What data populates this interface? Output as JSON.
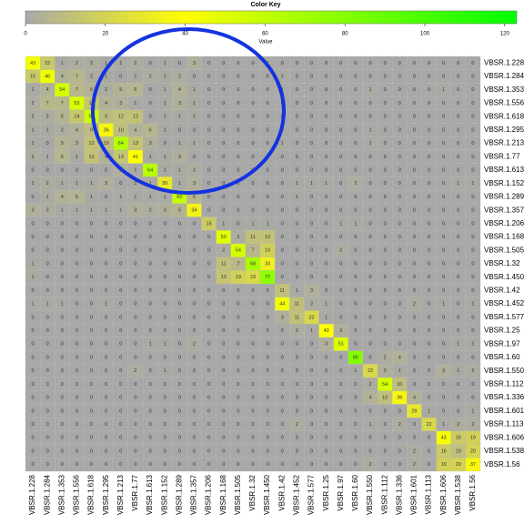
{
  "chart_data": {
    "type": "heatmap",
    "title": "Color Key",
    "zlabel": "Value",
    "labels": [
      "VBSR.1.228",
      "VBSR.1.284",
      "VBSR.1.353",
      "VBSR.1.556",
      "VBSR.1.618",
      "VBSR.1.295",
      "VBSR.1.213",
      "VBSR.1.77",
      "VBSR.1.613",
      "VBSR.1.152",
      "VBSR.1.289",
      "VBSR.1.357",
      "VBSR.1.206",
      "VBSR.1.168",
      "VBSR.1.505",
      "VBSR.1.32",
      "VBSR.1.450",
      "VBSR.1.42",
      "VBSR.1.452",
      "VBSR.1.577",
      "VBSR.1.25",
      "VBSR.1.97",
      "VBSR.1.60",
      "VBSR.1.550",
      "VBSR.1.112",
      "VBSR.1.336",
      "VBSR.1.601",
      "VBSR.1.113",
      "VBSR.1.606",
      "VBSR.1.538",
      "VBSR.1.56"
    ],
    "values": [
      [
        43,
        15,
        1,
        2,
        2,
        1,
        1,
        2,
        0,
        1,
        0,
        3,
        0,
        0,
        0,
        0,
        1,
        0,
        0,
        0,
        0,
        0,
        0,
        0,
        0,
        0,
        0,
        0,
        0,
        0,
        0
      ],
      [
        15,
        46,
        4,
        7,
        2,
        1,
        0,
        1,
        2,
        1,
        2,
        0,
        0,
        0,
        0,
        0,
        0,
        1,
        0,
        0,
        0,
        0,
        0,
        0,
        0,
        0,
        0,
        0,
        0,
        0,
        0
      ],
      [
        1,
        4,
        54,
        7,
        5,
        2,
        5,
        6,
        0,
        1,
        4,
        1,
        0,
        0,
        0,
        0,
        0,
        1,
        0,
        0,
        0,
        0,
        0,
        1,
        0,
        0,
        0,
        0,
        1,
        0,
        0
      ],
      [
        2,
        7,
        7,
        53,
        14,
        4,
        3,
        1,
        0,
        1,
        3,
        1,
        0,
        0,
        0,
        0,
        0,
        0,
        0,
        0,
        0,
        0,
        0,
        0,
        0,
        0,
        0,
        0,
        0,
        0,
        0
      ],
      [
        2,
        2,
        5,
        14,
        56,
        9,
        12,
        12,
        0,
        1,
        1,
        1,
        0,
        0,
        0,
        0,
        0,
        0,
        0,
        0,
        0,
        0,
        0,
        0,
        0,
        0,
        0,
        0,
        0,
        0,
        0
      ],
      [
        1,
        1,
        2,
        4,
        9,
        36,
        10,
        4,
        6,
        1,
        0,
        0,
        0,
        0,
        0,
        0,
        0,
        0,
        0,
        0,
        0,
        0,
        0,
        1,
        0,
        0,
        0,
        0,
        0,
        0,
        0
      ],
      [
        1,
        0,
        5,
        3,
        12,
        10,
        64,
        13,
        3,
        0,
        1,
        1,
        0,
        0,
        0,
        0,
        0,
        1,
        0,
        0,
        0,
        0,
        0,
        1,
        0,
        0,
        0,
        0,
        0,
        0,
        0
      ],
      [
        2,
        1,
        6,
        1,
        12,
        4,
        13,
        41,
        1,
        1,
        3,
        0,
        0,
        0,
        0,
        0,
        0,
        0,
        0,
        0,
        0,
        0,
        0,
        0,
        0,
        0,
        0,
        0,
        0,
        0,
        0
      ],
      [
        0,
        0,
        0,
        0,
        0,
        0,
        3,
        1,
        64,
        1,
        1,
        2,
        0,
        0,
        0,
        0,
        0,
        0,
        0,
        0,
        0,
        0,
        0,
        0,
        0,
        0,
        0,
        0,
        0,
        0,
        0
      ],
      [
        1,
        2,
        1,
        1,
        1,
        3,
        0,
        1,
        1,
        30,
        1,
        3,
        0,
        0,
        0,
        0,
        0,
        0,
        1,
        1,
        1,
        0,
        2,
        0,
        0,
        0,
        0,
        0,
        0,
        1,
        1
      ],
      [
        0,
        1,
        4,
        5,
        1,
        0,
        1,
        1,
        1,
        1,
        60,
        6,
        0,
        0,
        0,
        0,
        0,
        0,
        1,
        0,
        0,
        0,
        0,
        0,
        0,
        0,
        0,
        0,
        0,
        0,
        0
      ],
      [
        3,
        2,
        1,
        1,
        1,
        1,
        1,
        3,
        2,
        3,
        5,
        34,
        0,
        0,
        0,
        0,
        0,
        0,
        0,
        0,
        0,
        0,
        0,
        0,
        0,
        0,
        0,
        0,
        0,
        0,
        0
      ],
      [
        0,
        0,
        0,
        0,
        0,
        0,
        0,
        0,
        0,
        0,
        0,
        0,
        16,
        1,
        0,
        1,
        1,
        0,
        0,
        0,
        0,
        1,
        1,
        0,
        0,
        0,
        0,
        0,
        0,
        0,
        0
      ],
      [
        0,
        0,
        0,
        0,
        0,
        0,
        0,
        0,
        0,
        0,
        0,
        0,
        0,
        50,
        2,
        11,
        12,
        0,
        0,
        0,
        0,
        0,
        0,
        0,
        0,
        0,
        0,
        0,
        0,
        0,
        0
      ],
      [
        0,
        0,
        0,
        0,
        0,
        0,
        0,
        0,
        0,
        0,
        0,
        0,
        0,
        2,
        54,
        7,
        19,
        0,
        0,
        0,
        0,
        2,
        0,
        0,
        0,
        0,
        0,
        0,
        0,
        0,
        0
      ],
      [
        1,
        0,
        0,
        0,
        0,
        0,
        0,
        0,
        0,
        0,
        0,
        0,
        0,
        11,
        7,
        68,
        33,
        0,
        0,
        0,
        0,
        0,
        0,
        0,
        0,
        0,
        0,
        0,
        0,
        0,
        0
      ],
      [
        1,
        0,
        0,
        0,
        0,
        0,
        0,
        0,
        0,
        0,
        0,
        0,
        0,
        13,
        19,
        23,
        77,
        0,
        0,
        0,
        0,
        0,
        0,
        0,
        0,
        0,
        0,
        0,
        0,
        0,
        0
      ],
      [
        0,
        0,
        0,
        0,
        0,
        0,
        0,
        0,
        0,
        0,
        0,
        0,
        0,
        0,
        0,
        0,
        0,
        11,
        1,
        3,
        0,
        0,
        0,
        0,
        0,
        0,
        0,
        0,
        0,
        0,
        0
      ],
      [
        1,
        1,
        1,
        0,
        0,
        1,
        0,
        0,
        0,
        0,
        0,
        0,
        0,
        0,
        0,
        0,
        0,
        44,
        11,
        2,
        1,
        0,
        0,
        0,
        0,
        0,
        2,
        0,
        1,
        0,
        1
      ],
      [
        0,
        0,
        0,
        0,
        0,
        0,
        0,
        0,
        0,
        0,
        0,
        0,
        0,
        0,
        0,
        0,
        0,
        3,
        11,
        22,
        1,
        0,
        0,
        0,
        0,
        0,
        0,
        0,
        0,
        0,
        0
      ],
      [
        0,
        0,
        0,
        0,
        0,
        0,
        0,
        0,
        0,
        0,
        0,
        0,
        0,
        0,
        0,
        0,
        0,
        0,
        2,
        1,
        40,
        3,
        0,
        0,
        0,
        0,
        0,
        0,
        0,
        0,
        0
      ],
      [
        0,
        0,
        0,
        0,
        0,
        0,
        0,
        0,
        1,
        1,
        0,
        2,
        0,
        0,
        0,
        0,
        0,
        0,
        0,
        0,
        3,
        51,
        0,
        0,
        0,
        0,
        0,
        0,
        0,
        1,
        1
      ],
      [
        0,
        0,
        0,
        0,
        0,
        0,
        0,
        0,
        0,
        0,
        0,
        0,
        0,
        0,
        0,
        0,
        0,
        0,
        0,
        0,
        0,
        0,
        80,
        0,
        2,
        4,
        0,
        0,
        0,
        0,
        0
      ],
      [
        0,
        0,
        0,
        0,
        0,
        0,
        0,
        2,
        0,
        1,
        0,
        0,
        0,
        0,
        0,
        0,
        0,
        0,
        0,
        0,
        0,
        0,
        1,
        22,
        3,
        1,
        0,
        0,
        3,
        1,
        2
      ],
      [
        0,
        0,
        0,
        0,
        0,
        0,
        0,
        0,
        0,
        0,
        0,
        0,
        0,
        0,
        0,
        0,
        0,
        0,
        0,
        0,
        0,
        0,
        0,
        2,
        54,
        10,
        0,
        0,
        0,
        0,
        0
      ],
      [
        0,
        0,
        0,
        0,
        0,
        0,
        0,
        0,
        0,
        0,
        0,
        0,
        0,
        0,
        0,
        0,
        0,
        0,
        0,
        0,
        0,
        0,
        0,
        4,
        10,
        36,
        4,
        0,
        0,
        0,
        0
      ],
      [
        0,
        0,
        0,
        0,
        0,
        0,
        0,
        0,
        0,
        0,
        0,
        0,
        0,
        0,
        0,
        0,
        0,
        0,
        0,
        0,
        0,
        0,
        0,
        0,
        0,
        0,
        29,
        1,
        0,
        0,
        1
      ],
      [
        0,
        0,
        0,
        0,
        0,
        0,
        0,
        0,
        0,
        0,
        0,
        0,
        0,
        0,
        0,
        0,
        0,
        0,
        2,
        0,
        0,
        0,
        0,
        1,
        0,
        2,
        0,
        22,
        1,
        2,
        2
      ],
      [
        0,
        0,
        0,
        0,
        0,
        0,
        0,
        0,
        0,
        0,
        0,
        0,
        0,
        0,
        0,
        0,
        0,
        0,
        0,
        0,
        0,
        0,
        0,
        0,
        0,
        0,
        0,
        0,
        43,
        16,
        19
      ],
      [
        0,
        0,
        0,
        0,
        0,
        0,
        0,
        0,
        0,
        0,
        0,
        0,
        0,
        0,
        0,
        0,
        0,
        0,
        0,
        0,
        0,
        0,
        0,
        0,
        0,
        0,
        2,
        0,
        16,
        10,
        20
      ],
      [
        0,
        0,
        0,
        0,
        0,
        0,
        0,
        0,
        0,
        0,
        0,
        0,
        0,
        0,
        0,
        0,
        0,
        0,
        0,
        0,
        0,
        0,
        0,
        2,
        0,
        0,
        2,
        0,
        19,
        20,
        37
      ]
    ],
    "zlim": [
      0,
      123
    ],
    "zticks": [
      0,
      20,
      40,
      60,
      80,
      100,
      120
    ],
    "colorscale": [
      {
        "value": 0,
        "color": "#a8a8a8"
      },
      {
        "value": 40,
        "color": "#ffff00"
      },
      {
        "value": 123,
        "color": "#00ff00"
      }
    ]
  }
}
